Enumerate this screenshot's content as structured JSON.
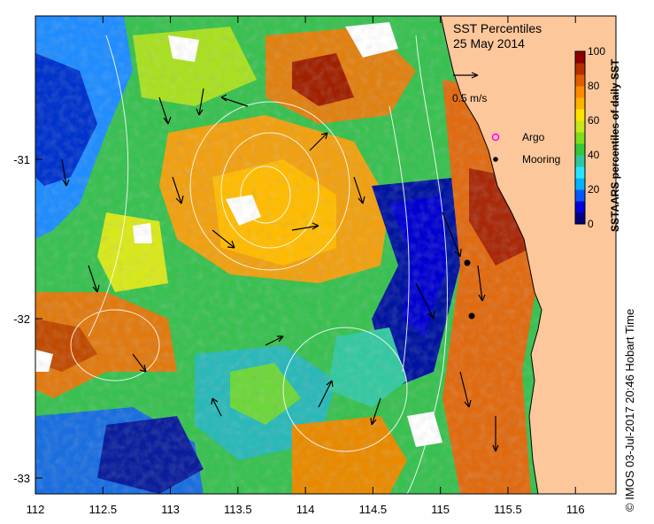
{
  "map": {
    "title": "SST Percentiles",
    "date": "25 May 2014",
    "x_axis_ticks": [
      "112",
      "112.5",
      "113",
      "113.5",
      "114",
      "114.5",
      "115",
      "115.5",
      "116"
    ],
    "y_axis_ticks": [
      "-31",
      "-32",
      "-33"
    ],
    "lon_range": [
      112,
      116.3
    ],
    "lat_range": [
      -33.1,
      -30.1
    ],
    "velocity_scale_label": "0.5 m/s",
    "legend": {
      "argo_label": "Argo",
      "mooring_label": "Mooring"
    },
    "colorbar": {
      "title": "SSTAARS percentiles of daily SST",
      "ticks": [
        "100",
        "80",
        "60",
        "40",
        "20",
        "0"
      ],
      "colors": [
        "#00007f",
        "#0000d9",
        "#0059ff",
        "#00b2ff",
        "#26e6ff",
        "#2ec8a0",
        "#34c83a",
        "#7fdd1a",
        "#c8e619",
        "#ffe500",
        "#ffb300",
        "#ff8a00",
        "#e06000",
        "#b83000",
        "#8c0000"
      ]
    },
    "credit": "© IMOS 03-Jul-2017 20:46 Hobart Time",
    "land_color": "#fcc79b",
    "moorings": [
      {
        "lon": 115.18,
        "lat": -31.65
      },
      {
        "lon": 115.22,
        "lat": -31.98
      }
    ]
  }
}
